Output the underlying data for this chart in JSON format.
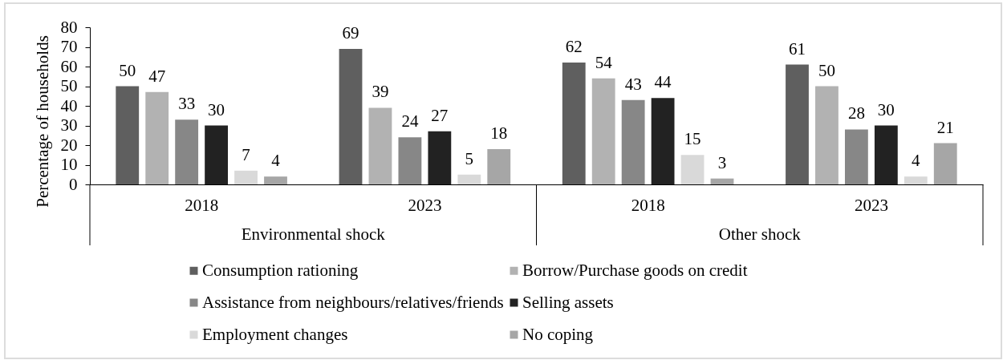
{
  "chart_data": {
    "type": "bar",
    "ylabel": "Percentage of households",
    "categories": [
      "2018",
      "2023",
      "2018",
      "2023"
    ],
    "annotations": [
      "Environmental shock",
      "Other shock"
    ],
    "series": [
      {
        "name": "Consumption rationing",
        "color": "#5f5f5f",
        "values": [
          50,
          69,
          62,
          61
        ]
      },
      {
        "name": "Borrow/Purchase goods on credit",
        "color": "#b2b2b2",
        "values": [
          47,
          39,
          54,
          50
        ]
      },
      {
        "name": "Assistance from neighbours/relatives/friends",
        "color": "#878787",
        "values": [
          33,
          24,
          43,
          28
        ]
      },
      {
        "name": "Selling assets",
        "color": "#222222",
        "values": [
          30,
          27,
          44,
          30
        ]
      },
      {
        "name": "Employment changes",
        "color": "#d9d9d9",
        "values": [
          7,
          5,
          15,
          4
        ]
      },
      {
        "name": "No coping",
        "color": "#a6a6a6",
        "values": [
          4,
          18,
          3,
          21
        ]
      }
    ],
    "ylim": [
      0,
      80
    ],
    "yticks": [
      0,
      10,
      20,
      30,
      40,
      50,
      60,
      70,
      80
    ],
    "data_labels": true,
    "legend": "bottom"
  }
}
